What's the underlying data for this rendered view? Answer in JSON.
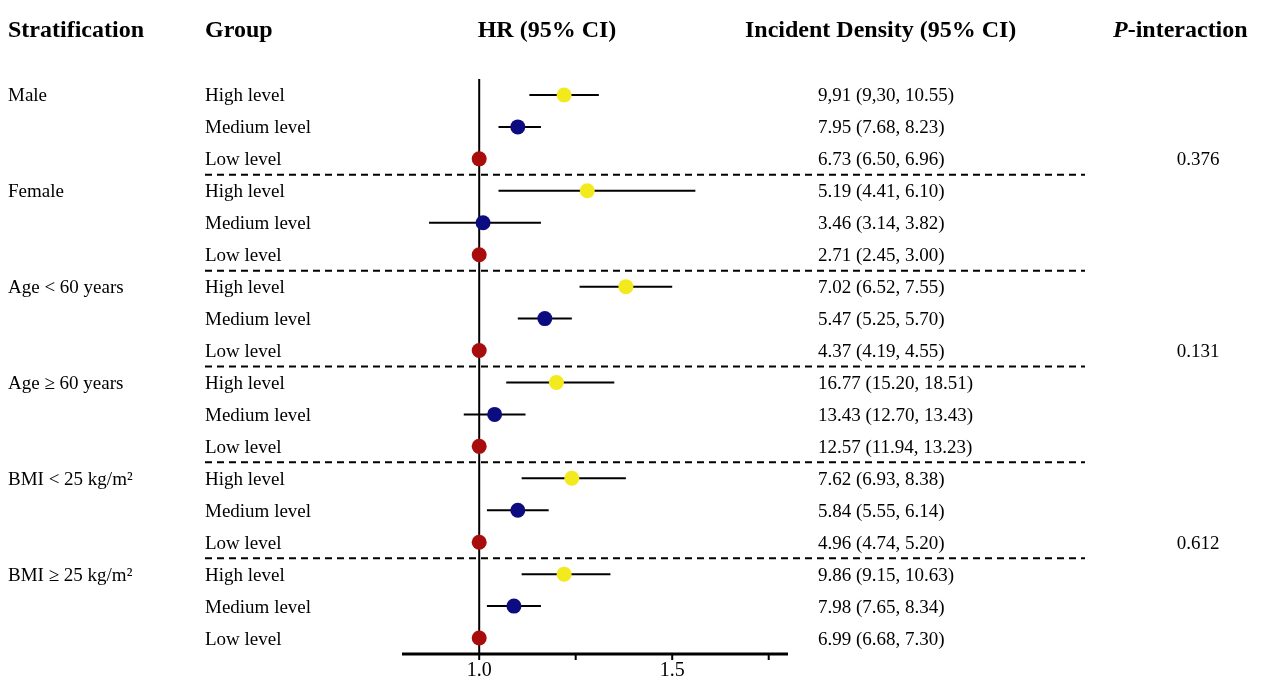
{
  "chart_data": {
    "type": "scatter",
    "orientation": "horizontal",
    "title": "HR (95% CI)",
    "categories": [
      "High level",
      "Medium level",
      "Low level",
      "High level",
      "Medium level",
      "Low level",
      "High level",
      "Medium level",
      "Low level",
      "High level",
      "Medium level",
      "Low level",
      "High level",
      "Medium level",
      "Low level",
      "High level",
      "Medium level",
      "Low level"
    ],
    "series": [
      {
        "color": "#f2ea1c",
        "values": [
          1.22,
          null,
          null,
          1.28,
          null,
          null,
          1.38,
          null,
          null,
          1.2,
          null,
          null,
          1.24,
          null,
          null,
          1.22,
          null,
          null
        ],
        "errors": [
          [
            1.13,
            1.31
          ],
          null,
          null,
          [
            1.05,
            1.56
          ],
          null,
          null,
          [
            1.26,
            1.5
          ],
          null,
          null,
          [
            1.07,
            1.35
          ],
          null,
          null,
          [
            1.11,
            1.38
          ],
          null,
          null,
          [
            1.11,
            1.34
          ],
          null,
          null
        ]
      },
      {
        "color": "#0c0c80",
        "values": [
          null,
          1.1,
          null,
          null,
          1.01,
          null,
          null,
          1.17,
          null,
          null,
          1.04,
          null,
          null,
          1.1,
          null,
          null,
          1.09,
          null
        ],
        "errors": [
          null,
          [
            1.05,
            1.16
          ],
          null,
          null,
          [
            0.87,
            1.16
          ],
          null,
          null,
          [
            1.1,
            1.24
          ],
          null,
          null,
          [
            0.96,
            1.12
          ],
          null,
          null,
          [
            1.02,
            1.18
          ],
          null,
          null,
          [
            1.02,
            1.16
          ],
          null
        ]
      },
      {
        "color": "#a80c0c",
        "values": [
          null,
          null,
          1,
          null,
          null,
          1,
          null,
          null,
          1,
          null,
          null,
          1,
          null,
          null,
          1,
          null,
          null,
          1
        ]
      }
    ],
    "xlim": [
      0.8,
      1.8
    ],
    "xticks": [
      {
        "value": 1,
        "label": "1.0"
      },
      {
        "value": 1.25,
        "label": null
      },
      {
        "value": 1.5,
        "label": "1.5"
      },
      {
        "value": 1.75,
        "label": null
      }
    ],
    "ref_lines": [
      {
        "axis": "x",
        "value": 1,
        "color": "#000000"
      }
    ],
    "marker": "circle",
    "grid": false,
    "legend": false,
    "annotations": [
      "Stratification",
      "Group",
      "Incident Density (95% CI)",
      "P-interaction",
      "Male",
      "Female",
      "Age < 60 years",
      "Age ≥ 60 years",
      "BMI < 25 kg/m²",
      "BMI ≥ 25 kg/m²",
      "0.376",
      "0.131",
      "0.612",
      "9,91 (9,30, 10.55)",
      "7.95 (7.68, 8.23)",
      "6.73 (6.50, 6.96)",
      "5.19 (4.41, 6.10)",
      "3.46 (3.14, 3.82)",
      "2.71 (2.45, 3.00)",
      "7.02 (6.52, 7.55)",
      "5.47 (5.25, 5.70)",
      "4.37 (4.19, 4.55)",
      "16.77 (15.20, 18.51)",
      "13.43 (12.70, 13.43)",
      "12.57 (11.94, 13.23)",
      "7.62 (6.93, 8.38)",
      "5.84 (5.55, 6.14)",
      "4.96 (4.74, 5.20)",
      "9.86 (9.15, 10.63)",
      "7.98 (7.65, 8.34)",
      "6.99 (6.68, 7.30)"
    ]
  }
}
